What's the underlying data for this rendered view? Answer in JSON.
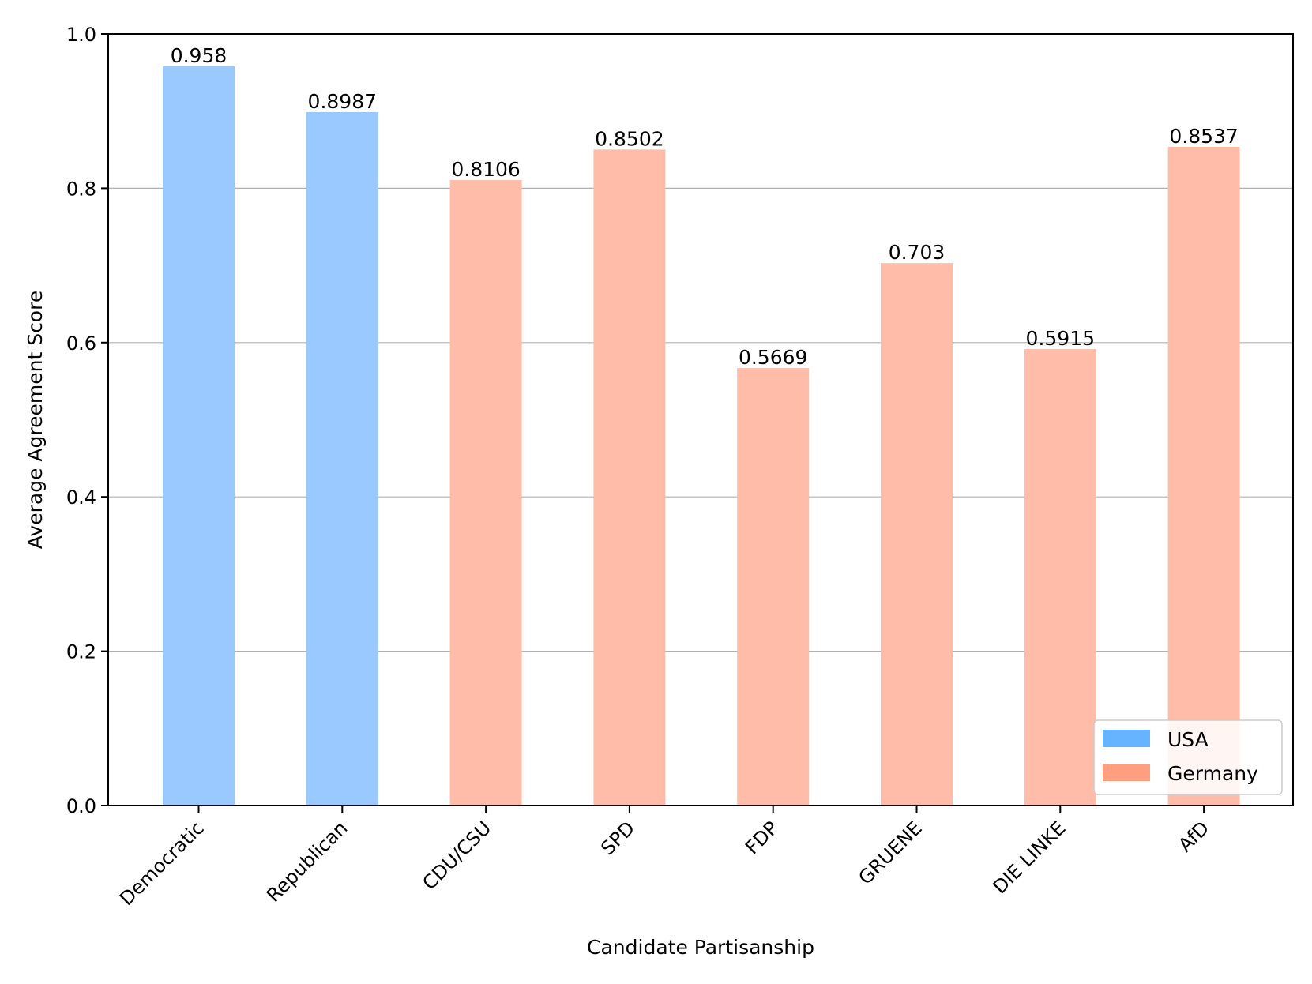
{
  "chart_data": {
    "type": "bar",
    "title": "",
    "xlabel": "Candidate Partisanship",
    "ylabel": "Average Agreement Score",
    "ylim": [
      0,
      1.0
    ],
    "yticks": [
      "0.0",
      "0.2",
      "0.4",
      "0.6",
      "0.8",
      "1.0"
    ],
    "grid": "horizontal",
    "legend_position": "lower-right",
    "categories": [
      "Democratic",
      "Republican",
      "CDU/CSU",
      "SPD",
      "FDP",
      "GRUENE",
      "DIE LINKE",
      "AfD"
    ],
    "values": [
      0.958,
      0.8987,
      0.8106,
      0.8502,
      0.5669,
      0.703,
      0.5915,
      0.8537
    ],
    "value_labels": [
      "0.958",
      "0.8987",
      "0.8106",
      "0.8502",
      "0.5669",
      "0.703",
      "0.5915",
      "0.8537"
    ],
    "groups": [
      "USA",
      "USA",
      "Germany",
      "Germany",
      "Germany",
      "Germany",
      "Germany",
      "Germany"
    ],
    "legend": [
      {
        "name": "USA",
        "color": "#66b3ff"
      },
      {
        "name": "Germany",
        "color": "#ff9f80"
      }
    ],
    "bar_colors": {
      "USA": "#99c9fe",
      "Germany": "#ffbca8"
    }
  }
}
